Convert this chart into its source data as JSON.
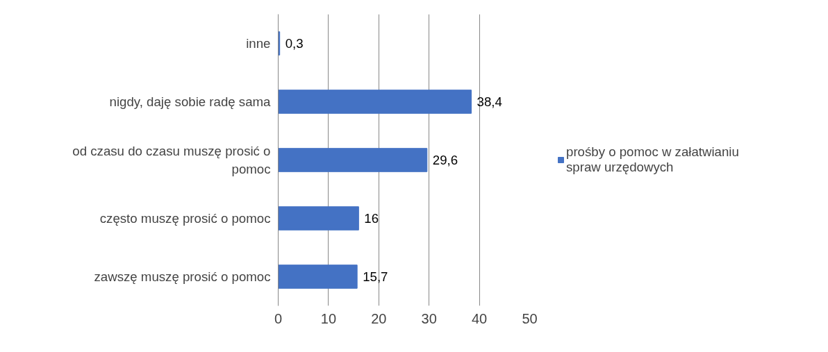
{
  "chart_data": {
    "type": "bar",
    "orientation": "horizontal",
    "categories": [
      "inne",
      "nigdy, daję sobie radę sama",
      "od czasu do czasu muszę prosić o pomoc",
      "często muszę prosić o pomoc",
      "zawszę muszę prosić o pomoc"
    ],
    "series": [
      {
        "name": "prośby o pomoc w załatwianiu spraw urzędowych",
        "color": "#4472c4",
        "values": [
          0.3,
          38.4,
          29.6,
          16,
          15.7
        ],
        "value_labels": [
          "0,3",
          "38,4",
          "29,6",
          "16",
          "15,7"
        ]
      }
    ],
    "xlim": [
      0,
      50
    ],
    "xticks": [
      0,
      10,
      20,
      30,
      40,
      50
    ],
    "grid": "x",
    "legend": "right"
  }
}
